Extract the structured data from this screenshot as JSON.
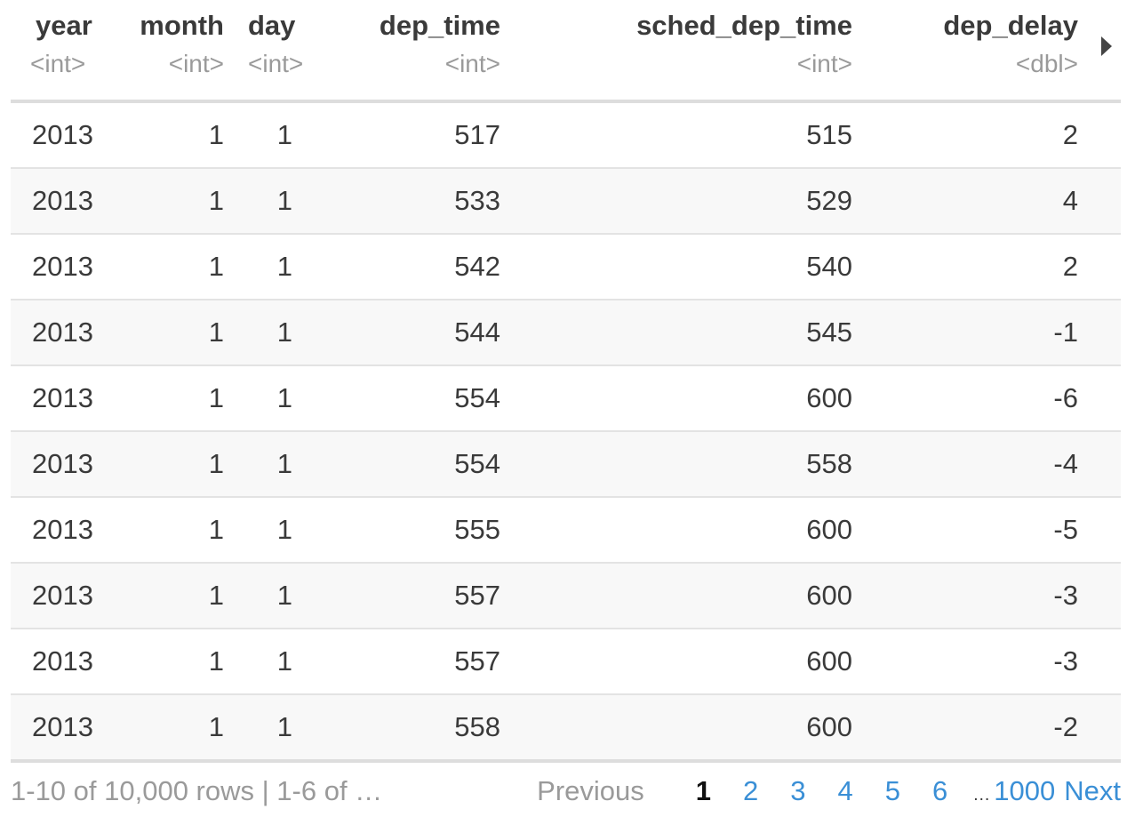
{
  "columns": [
    {
      "name": "year",
      "type": "<int>"
    },
    {
      "name": "month",
      "type": "<int>"
    },
    {
      "name": "day",
      "type": "<int>"
    },
    {
      "name": "dep_time",
      "type": "<int>"
    },
    {
      "name": "sched_dep_time",
      "type": "<int>"
    },
    {
      "name": "dep_delay",
      "type": "<dbl>"
    }
  ],
  "rows": [
    [
      "2013",
      "1",
      "1",
      "517",
      "515",
      "2"
    ],
    [
      "2013",
      "1",
      "1",
      "533",
      "529",
      "4"
    ],
    [
      "2013",
      "1",
      "1",
      "542",
      "540",
      "2"
    ],
    [
      "2013",
      "1",
      "1",
      "544",
      "545",
      "-1"
    ],
    [
      "2013",
      "1",
      "1",
      "554",
      "600",
      "-6"
    ],
    [
      "2013",
      "1",
      "1",
      "554",
      "558",
      "-4"
    ],
    [
      "2013",
      "1",
      "1",
      "555",
      "600",
      "-5"
    ],
    [
      "2013",
      "1",
      "1",
      "557",
      "600",
      "-3"
    ],
    [
      "2013",
      "1",
      "1",
      "557",
      "600",
      "-3"
    ],
    [
      "2013",
      "1",
      "1",
      "558",
      "600",
      "-2"
    ]
  ],
  "footer": {
    "info": "1-10 of 10,000 rows | 1-6 of …",
    "previous": "Previous",
    "pages": [
      "1",
      "2",
      "3",
      "4",
      "5",
      "6"
    ],
    "current_page": "1",
    "ellipsis": "…",
    "last_page": "1000",
    "next": "Next"
  },
  "icons": {
    "next_columns": "triangle-right-icon"
  },
  "colors": {
    "link": "#3a8fd6",
    "muted": "#9a9a9a",
    "text": "#3a3a3a"
  }
}
